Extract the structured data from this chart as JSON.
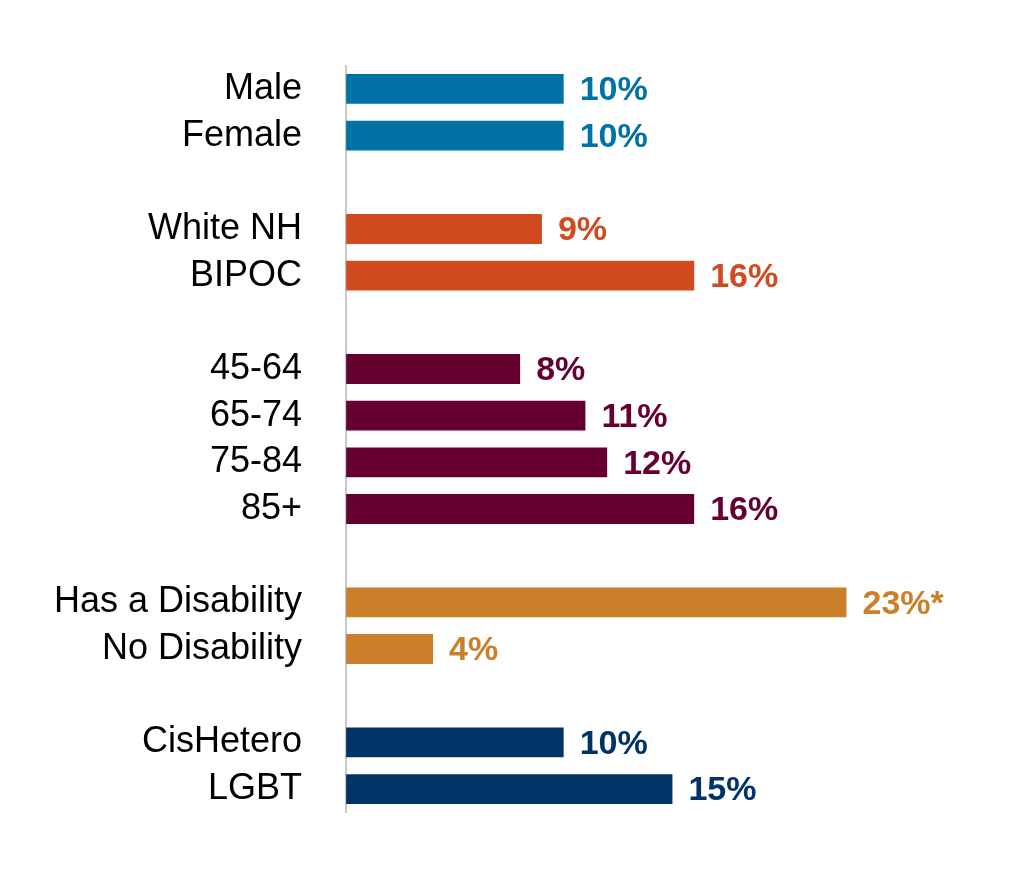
{
  "chart_data": {
    "type": "bar",
    "orientation": "horizontal",
    "categories": [
      "Male",
      "Female",
      null,
      "White NH",
      "BIPOC",
      null,
      "45-64",
      "65-74",
      "75-84",
      "85+",
      null,
      "Has a Disability",
      "No Disability",
      null,
      "CisHetero",
      "LGBT"
    ],
    "values": [
      10,
      10,
      null,
      9,
      16,
      null,
      8,
      11,
      12,
      16,
      null,
      23,
      4,
      null,
      10,
      15
    ],
    "colors": [
      "#0072a3",
      "#0072a3",
      null,
      "#d24a1f",
      "#d24a1f",
      null,
      "#650030",
      "#650030",
      "#650030",
      "#650030",
      null,
      "#cc7f2a",
      "#cc7f2a",
      null,
      "#003366",
      "#003366"
    ],
    "value_labels": [
      "10%",
      "10%",
      null,
      "9%",
      "16%",
      null,
      "8%",
      "11%",
      "12%",
      "16%",
      null,
      "23%*",
      "4%",
      null,
      "10%",
      "15%"
    ],
    "legend": false
  }
}
